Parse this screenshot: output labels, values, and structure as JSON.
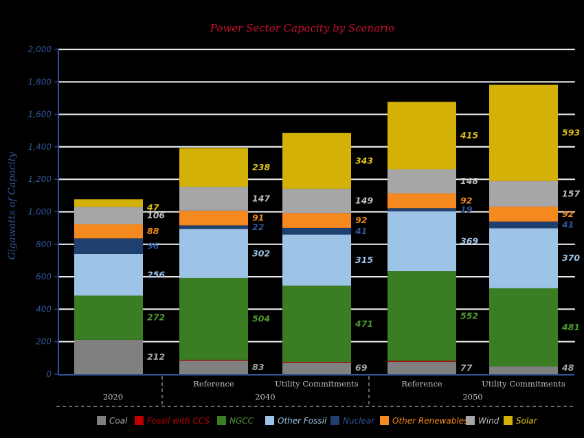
{
  "chart_data": {
    "type": "bar",
    "stacked": true,
    "title": "Power Sector Capacity by Scenario",
    "ylabel": "Gigawatts of Capacity",
    "xlabel": "",
    "ylim": [
      0,
      2000
    ],
    "yticks": [
      "0",
      "200",
      "400",
      "600",
      "800",
      "1,000",
      "1,200",
      "1,400",
      "1,600",
      "1,800",
      "2,000"
    ],
    "grid": true,
    "legend_position": "bottom",
    "categories": [
      "",
      "Reference",
      "Utility Commitments",
      "Reference",
      "Utility Commitments"
    ],
    "groups": [
      {
        "label": "2020",
        "span": [
          0,
          0
        ]
      },
      {
        "label": "2040",
        "span": [
          1,
          2
        ]
      },
      {
        "label": "2050",
        "span": [
          3,
          4
        ]
      }
    ],
    "series": [
      {
        "name": "Coal",
        "color": "#808080",
        "label_color": "#a6a6a6",
        "values": [
          212,
          83,
          69,
          77,
          48
        ]
      },
      {
        "name": "Fossil with CCS",
        "color": "#c00000",
        "label_color": "#c00000",
        "values": [
          0,
          5,
          5,
          5,
          0
        ]
      },
      {
        "name": "NGCC",
        "color": "#3a7d22",
        "label_color": "#4e9a2e",
        "values": [
          272,
          504,
          471,
          552,
          481
        ]
      },
      {
        "name": "Other Fossil",
        "color": "#9dc3e6",
        "label_color": "#9dc3e6",
        "values": [
          256,
          302,
          315,
          369,
          370
        ]
      },
      {
        "name": "Nuclear",
        "color": "#1f3f6e",
        "label_color": "#2f5597",
        "values": [
          96,
          22,
          41,
          19,
          41
        ]
      },
      {
        "name": "Other Renewables",
        "color": "#f4891f",
        "label_color": "#f4891f",
        "values": [
          88,
          91,
          92,
          92,
          92
        ]
      },
      {
        "name": "Wind",
        "color": "#a6a6a6",
        "label_color": "#bfbfbf",
        "values": [
          106,
          147,
          149,
          148,
          157
        ]
      },
      {
        "name": "Solar",
        "color": "#d4b106",
        "label_color": "#e3c31a",
        "values": [
          47,
          238,
          343,
          415,
          593
        ]
      }
    ],
    "data_labels": [
      [
        "212",
        "",
        "272",
        "256",
        "96",
        "88",
        "106",
        "47"
      ],
      [
        "83",
        "",
        "504",
        "302",
        "22",
        "91",
        "147",
        "238"
      ],
      [
        "69",
        "",
        "471",
        "315",
        "41",
        "92",
        "149",
        "343"
      ],
      [
        "77",
        "",
        "552",
        "369",
        "19",
        "92",
        "148",
        "415"
      ],
      [
        "48",
        "",
        "481",
        "370",
        "41",
        "92",
        "157",
        "593"
      ]
    ]
  }
}
